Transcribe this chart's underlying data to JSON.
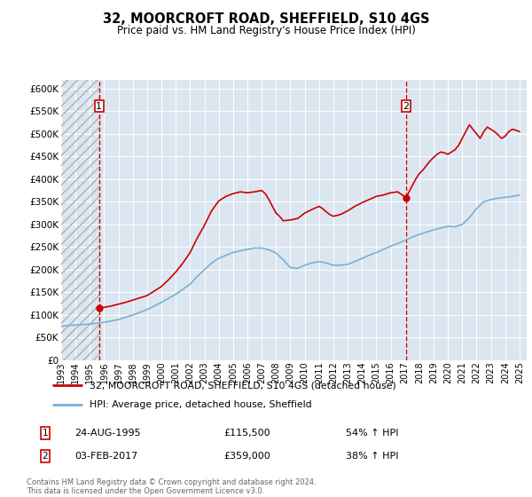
{
  "title1": "32, MOORCROFT ROAD, SHEFFIELD, S10 4GS",
  "title2": "Price paid vs. HM Land Registry's House Price Index (HPI)",
  "xlim_start": 1993.0,
  "xlim_end": 2025.5,
  "ylim_min": 0,
  "ylim_max": 620000,
  "yticks": [
    0,
    50000,
    100000,
    150000,
    200000,
    250000,
    300000,
    350000,
    400000,
    450000,
    500000,
    550000,
    600000
  ],
  "ytick_labels": [
    "£0",
    "£50K",
    "£100K",
    "£150K",
    "£200K",
    "£250K",
    "£300K",
    "£350K",
    "£400K",
    "£450K",
    "£500K",
    "£550K",
    "£600K"
  ],
  "sale1_date": 1995.65,
  "sale1_price": 115500,
  "sale2_date": 2017.09,
  "sale2_price": 359000,
  "line_color_property": "#cc0000",
  "line_color_hpi": "#7bafd4",
  "marker_color": "#cc0000",
  "background_color": "#dce6f1",
  "legend_label1": "32, MOORCROFT ROAD, SHEFFIELD, S10 4GS (detached house)",
  "legend_label2": "HPI: Average price, detached house, Sheffield",
  "annotation1_label": "24-AUG-1995",
  "annotation1_price": "£115,500",
  "annotation1_hpi": "54% ↑ HPI",
  "annotation2_label": "03-FEB-2017",
  "annotation2_price": "£359,000",
  "annotation2_hpi": "38% ↑ HPI",
  "footer": "Contains HM Land Registry data © Crown copyright and database right 2024.\nThis data is licensed under the Open Government Licence v3.0.",
  "xticks": [
    1993,
    1994,
    1995,
    1996,
    1997,
    1998,
    1999,
    2000,
    2001,
    2002,
    2003,
    2004,
    2005,
    2006,
    2007,
    2008,
    2009,
    2010,
    2011,
    2012,
    2013,
    2014,
    2015,
    2016,
    2017,
    2018,
    2019,
    2020,
    2021,
    2022,
    2023,
    2024,
    2025
  ],
  "hpi_years": [
    1993.0,
    1993.5,
    1994.0,
    1994.5,
    1995.0,
    1995.5,
    1996.0,
    1996.5,
    1997.0,
    1997.5,
    1998.0,
    1998.5,
    1999.0,
    1999.5,
    2000.0,
    2000.5,
    2001.0,
    2001.5,
    2002.0,
    2002.5,
    2003.0,
    2003.5,
    2004.0,
    2004.5,
    2005.0,
    2005.5,
    2006.0,
    2006.5,
    2007.0,
    2007.5,
    2008.0,
    2008.5,
    2009.0,
    2009.5,
    2010.0,
    2010.5,
    2011.0,
    2011.5,
    2012.0,
    2012.5,
    2013.0,
    2013.5,
    2014.0,
    2014.5,
    2015.0,
    2015.5,
    2016.0,
    2016.5,
    2017.0,
    2017.5,
    2018.0,
    2018.5,
    2019.0,
    2019.5,
    2020.0,
    2020.5,
    2021.0,
    2021.5,
    2022.0,
    2022.5,
    2023.0,
    2023.5,
    2024.0,
    2024.5,
    2025.0
  ],
  "hpi_values": [
    75000,
    77000,
    78000,
    79000,
    80000,
    82000,
    84000,
    87000,
    90000,
    95000,
    100000,
    106000,
    112000,
    120000,
    128000,
    137000,
    146000,
    157000,
    168000,
    185000,
    200000,
    215000,
    225000,
    232000,
    238000,
    242000,
    245000,
    248000,
    248000,
    244000,
    237000,
    222000,
    205000,
    203000,
    210000,
    215000,
    218000,
    215000,
    210000,
    210000,
    212000,
    218000,
    225000,
    232000,
    238000,
    245000,
    252000,
    258000,
    265000,
    272000,
    278000,
    283000,
    288000,
    292000,
    296000,
    295000,
    300000,
    315000,
    335000,
    350000,
    355000,
    358000,
    360000,
    362000,
    365000
  ],
  "prop_years": [
    1995.65,
    1996.0,
    1996.5,
    1997.0,
    1997.5,
    1998.0,
    1998.5,
    1999.0,
    1999.5,
    2000.0,
    2000.5,
    2001.0,
    2001.5,
    2002.0,
    2002.5,
    2003.0,
    2003.5,
    2004.0,
    2004.5,
    2005.0,
    2005.5,
    2006.0,
    2006.5,
    2007.0,
    2007.25,
    2007.5,
    2007.75,
    2008.0,
    2008.25,
    2008.5,
    2009.0,
    2009.5,
    2010.0,
    2010.5,
    2011.0,
    2011.25,
    2011.5,
    2011.75,
    2012.0,
    2012.25,
    2012.5,
    2012.75,
    2013.0,
    2013.25,
    2013.5,
    2014.0,
    2014.5,
    2015.0,
    2015.5,
    2016.0,
    2016.5,
    2017.09
  ],
  "prop_values": [
    115500,
    117000,
    120000,
    124000,
    128000,
    133000,
    138000,
    143000,
    153000,
    163000,
    178000,
    195000,
    215000,
    238000,
    270000,
    298000,
    330000,
    352000,
    362000,
    368000,
    372000,
    370000,
    372000,
    375000,
    368000,
    355000,
    340000,
    325000,
    318000,
    308000,
    310000,
    313000,
    325000,
    333000,
    340000,
    335000,
    328000,
    322000,
    318000,
    320000,
    322000,
    326000,
    330000,
    335000,
    340000,
    348000,
    355000,
    362000,
    365000,
    370000,
    372000,
    359000
  ],
  "prop2_years": [
    2017.09,
    2017.25,
    2017.5,
    2017.75,
    2018.0,
    2018.25,
    2018.5,
    2018.75,
    2019.0,
    2019.25,
    2019.5,
    2019.75,
    2020.0,
    2020.25,
    2020.5,
    2020.75,
    2021.0,
    2021.25,
    2021.5,
    2021.75,
    2022.0,
    2022.25,
    2022.5,
    2022.75,
    2023.0,
    2023.25,
    2023.5,
    2023.75,
    2024.0,
    2024.25,
    2024.5,
    2024.75,
    2025.0
  ],
  "prop2_values": [
    359000,
    370000,
    385000,
    400000,
    412000,
    420000,
    430000,
    440000,
    448000,
    455000,
    460000,
    458000,
    455000,
    460000,
    465000,
    475000,
    490000,
    505000,
    520000,
    510000,
    500000,
    490000,
    505000,
    515000,
    510000,
    505000,
    498000,
    490000,
    495000,
    505000,
    510000,
    508000,
    505000
  ]
}
